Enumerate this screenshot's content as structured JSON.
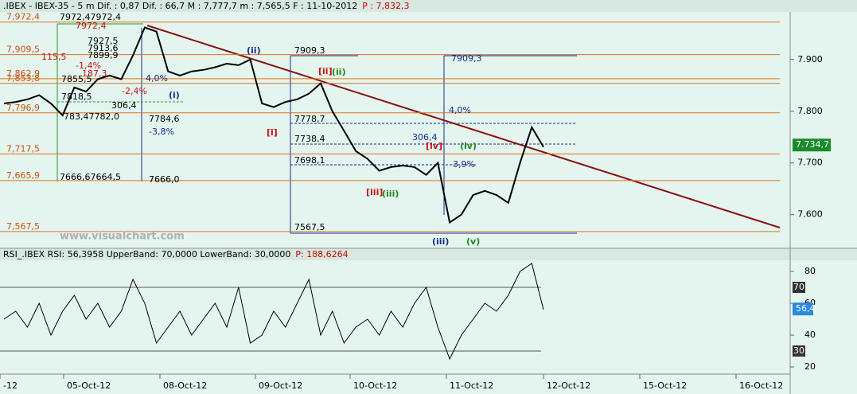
{
  "chart_data": [
    {
      "type": "line",
      "header": ".IBEX - IBEX-35 - 5 m Dif. : 0,87 Dif. : 66,7 M : 7,777,7 m : 7,565,5 F : 11-10-2012",
      "header_price": "P : 7,832,3",
      "x_labels": [
        "-12",
        "05-Oct-12",
        "08-Oct-12",
        "09-Oct-12",
        "10-Oct-12",
        "11-Oct-12",
        "12-Oct-12",
        "15-Oct-12",
        "16-Oct-12"
      ],
      "series": [
        {
          "name": "IBEX",
          "color": "#000000",
          "values": [
            7815,
            7818,
            7823,
            7831,
            7815,
            7792,
            7846,
            7838,
            7862,
            7869,
            7862,
            7908,
            7962,
            7954,
            7877,
            7869,
            7877,
            7880,
            7885,
            7892,
            7889,
            7900,
            7815,
            7808,
            7818,
            7823,
            7834,
            7854,
            7800,
            7762,
            7723,
            7708,
            7685,
            7692,
            7695,
            7692,
            7677,
            7700,
            7585,
            7600,
            7638,
            7646,
            7638,
            7623,
            7700,
            7769,
            7731
          ]
        }
      ],
      "ylim": [
        7538,
        7992
      ],
      "yticks": [
        {
          "value": 7900,
          "label": "7.900"
        },
        {
          "value": 7800,
          "label": "7.800"
        },
        {
          "value": 7700,
          "label": "7.700"
        },
        {
          "value": 7600,
          "label": "7.600"
        }
      ],
      "levels": [
        {
          "value": 7972.4,
          "label": "7,972,4"
        },
        {
          "value": 7909.5,
          "label": "7,909,5"
        },
        {
          "value": 7862.9,
          "label": "7,862,9"
        },
        {
          "value": 7853.8,
          "label": "7,853,8"
        },
        {
          "value": 7796.9,
          "label": "7,796,9"
        },
        {
          "value": 7717.5,
          "label": "7,717,5"
        },
        {
          "value": 7665.9,
          "label": "7,665,9"
        },
        {
          "value": 7567.5,
          "label": "7,567,5"
        }
      ],
      "last_value": {
        "value": 7734.7,
        "label": "7.734,7"
      },
      "annotations": [
        "7972,47972,4",
        "7972,4",
        "115,5",
        "7927,5",
        "7913,6",
        "7899,9",
        "-1,4%",
        "187,3",
        "7855,5",
        "-2,4%",
        "4,0%",
        "(i)",
        "7818,5",
        "306,4",
        "783,47782,0",
        "7784,6",
        "-3,8%",
        "7666,67664,5",
        "7666,0",
        "(ii)",
        "7909,3",
        "[ii]",
        "(ii)",
        "7778,7",
        "[i]",
        "7738,4",
        "306,4",
        "[iv]",
        "(iv)",
        "7698,1",
        "-3,9%",
        "[iii]",
        "(iii)",
        "7909,3",
        "4,0%",
        "7567,5",
        "(iii)",
        "(v)",
        "www.visualchart.com"
      ]
    },
    {
      "type": "line",
      "header": "RSI_.IBEX RSI: 56,3958 UpperBand: 70,0000 LowerBand: 30,0000",
      "header_price": "P: 188,6264",
      "series": [
        {
          "name": "RSI",
          "color": "#000000",
          "values": [
            50,
            55,
            45,
            60,
            40,
            55,
            65,
            50,
            60,
            45,
            55,
            75,
            60,
            35,
            45,
            55,
            40,
            50,
            60,
            45,
            70,
            35,
            40,
            55,
            45,
            60,
            75,
            40,
            55,
            35,
            45,
            50,
            40,
            55,
            45,
            60,
            70,
            45,
            25,
            40,
            50,
            60,
            55,
            65,
            80,
            85,
            56
          ]
        }
      ],
      "ylim": [
        15.5,
        87
      ],
      "yticks": [
        80,
        60,
        40,
        20
      ],
      "bands": [
        70,
        30
      ],
      "last_value": {
        "value": 56.4,
        "label": "56,4"
      }
    }
  ]
}
